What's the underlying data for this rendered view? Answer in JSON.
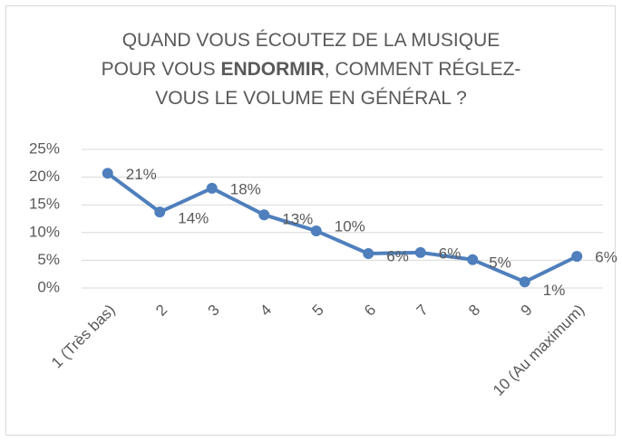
{
  "chart_data": {
    "type": "line",
    "title": [
      [
        "QUAND VOUS ÉCOUTEZ DE LA MUSIQUE"
      ],
      [
        "POUR VOUS ",
        "ENDORMIR",
        ", COMMENT RÉGLEZ-"
      ],
      [
        "VOUS LE VOLUME EN GÉNÉRAL ?"
      ]
    ],
    "categories": [
      "1 (Très bas)",
      "2",
      "3",
      "4",
      "5",
      "6",
      "7",
      "8",
      "9",
      "10 (Au maximum)"
    ],
    "values": [
      20.7,
      13.7,
      18.0,
      13.2,
      10.3,
      6.2,
      6.4,
      5.1,
      1.1,
      5.7
    ],
    "value_labels": [
      "21%",
      "14%",
      "18%",
      "13%",
      "10%",
      "6%",
      "6%",
      "5%",
      "1%",
      "6%"
    ],
    "color": "#4f7fbd",
    "ylim": [
      0,
      25
    ],
    "yticks": [
      {
        "value": 0,
        "label": "0%"
      },
      {
        "value": 5,
        "label": "5%"
      },
      {
        "value": 10,
        "label": "10%"
      },
      {
        "value": 15,
        "label": "15%"
      },
      {
        "value": 20,
        "label": "20%"
      },
      {
        "value": 25,
        "label": "25%"
      }
    ],
    "grid": true
  }
}
